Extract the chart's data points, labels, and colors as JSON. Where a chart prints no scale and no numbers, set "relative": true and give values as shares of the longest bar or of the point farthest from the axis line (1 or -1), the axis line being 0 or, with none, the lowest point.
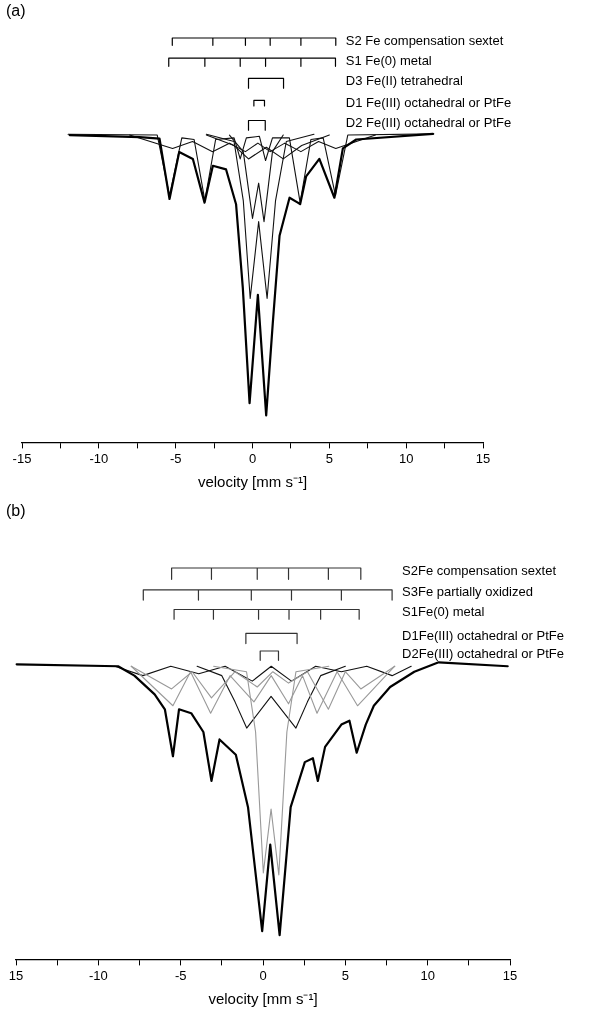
{
  "chart_data": [
    {
      "type": "line",
      "title": "(a)",
      "xlabel": "velocity [mm s⁻¹]",
      "relative": true,
      "marker": "none",
      "xlim": [
        -15,
        15
      ],
      "xticks": [
        -15,
        {
          "value": -12.5,
          "label": null
        },
        -10,
        {
          "value": -7.5,
          "label": null
        },
        -5,
        {
          "value": -2.5,
          "label": null
        },
        0,
        {
          "value": 2.5,
          "label": null
        },
        5,
        {
          "value": 7.5,
          "label": null
        },
        10,
        {
          "value": 12.5,
          "label": null
        },
        15
      ],
      "series": [
        {
          "color": "#000000",
          "x": [
            -11.9,
            -7.35,
            -6.05,
            -5.4,
            -4.77,
            -3.88,
            -3.12,
            -2.58,
            -1.72,
            -1.07,
            -0.63,
            -0.19,
            0.35,
            0.89,
            1.32,
            1.76,
            2.41,
            2.95,
            3.1,
            3.49,
            4.35,
            5.33,
            5.88,
            6.75,
            11.74
          ],
          "values": [
            0.76,
            0.755,
            0.751,
            0.602,
            0.718,
            0.701,
            0.593,
            0.684,
            0.675,
            0.589,
            0.382,
            0.097,
            0.365,
            0.067,
            0.295,
            0.511,
            0.605,
            0.593,
            0.589,
            0.658,
            0.701,
            0.605,
            0.727,
            0.749,
            0.763
          ]
        },
        {
          "color": "#111111",
          "x": [
            -12,
            -6.2,
            -5.4,
            -4.6,
            -3.8,
            -3.1,
            -2.4,
            -1.2,
            -0.8,
            -0.4,
            0.45,
            0.85,
            1.3,
            2.4,
            3.1,
            3.8,
            4.6,
            5.4,
            6.2,
            11.8
          ],
          "values": [
            0.762,
            0.76,
            0.61,
            0.753,
            0.749,
            0.598,
            0.749,
            0.753,
            0.701,
            0.753,
            0.757,
            0.697,
            0.753,
            0.753,
            0.593,
            0.749,
            0.753,
            0.61,
            0.76,
            0.763
          ]
        },
        {
          "color": "#111111",
          "x": [
            -3,
            -1.2,
            -0.6,
            -0.15,
            0.4,
            0.95,
            1.5,
            2.2,
            4
          ],
          "values": [
            0.762,
            0.744,
            0.598,
            0.356,
            0.546,
            0.356,
            0.598,
            0.744,
            0.762
          ]
        },
        {
          "color": "#111111",
          "x": [
            -1.5,
            -0.6,
            0,
            0.4,
            0.75,
            1.3,
            2
          ],
          "values": [
            0.76,
            0.719,
            0.554,
            0.641,
            0.546,
            0.719,
            0.76
          ]
        },
        {
          "color": "#111111",
          "x": [
            -3,
            -1.2,
            -0.26,
            0.9,
            2.0,
            3.2,
            5
          ],
          "values": [
            0.76,
            0.734,
            0.701,
            0.73,
            0.701,
            0.734,
            0.76
          ]
        },
        {
          "color": "#111111",
          "x": [
            -8,
            -5.2,
            -3.9,
            -2.6,
            -1.5,
            -0.46,
            0.35,
            1.15,
            2.1,
            3.15,
            4.3,
            5.42,
            8
          ],
          "values": [
            0.76,
            0.727,
            0.744,
            0.719,
            0.74,
            0.719,
            0.74,
            0.719,
            0.74,
            0.719,
            0.744,
            0.727,
            0.76
          ]
        },
        {
          "name": "S2 Fe compensation sextet",
          "color": "#000000",
          "x": [
            -5.22,
            -5.22,
            -2.58,
            -2.58,
            -2.58,
            -0.46,
            -0.46,
            -0.46,
            1.15,
            1.15,
            1.15,
            3.15,
            3.15,
            3.15,
            5.42,
            5.42
          ],
          "values": [
            0.982,
            1,
            1,
            0.982,
            1,
            1,
            0.982,
            1,
            1,
            0.982,
            1,
            1,
            0.982,
            1,
            1,
            0.982
          ]
        },
        {
          "name": "S1 Fe(0) metal",
          "color": "#000000",
          "x": [
            -5.45,
            -5.45,
            -3.1,
            -3.1,
            -3.1,
            -0.8,
            -0.8,
            -0.8,
            0.85,
            0.85,
            0.85,
            3.15,
            3.15,
            3.15,
            5.4,
            5.4
          ],
          "values": [
            0.93,
            0.95,
            0.95,
            0.93,
            0.95,
            0.95,
            0.93,
            0.95,
            0.95,
            0.93,
            0.95,
            0.95,
            0.93,
            0.95,
            0.95,
            0.93
          ]
        },
        {
          "name": "D3 Fe(II) tetrahedral",
          "color": "#000000",
          "x": [
            -0.26,
            -0.26,
            2.02,
            2.02
          ],
          "values": [
            0.876,
            0.9,
            0.9,
            0.876
          ]
        },
        {
          "name": "D1 Fe(III) octahedral or PtFe",
          "color": "#000000",
          "x": [
            0.09,
            0.09,
            0.78,
            0.78
          ],
          "values": [
            0.832,
            0.846,
            0.846,
            0.832
          ]
        },
        {
          "name": "D2 Fe(III) octahedral or PtFe",
          "color": "#000000",
          "x": [
            -0.26,
            -0.26,
            0.83,
            0.83
          ],
          "values": [
            0.772,
            0.796,
            0.796,
            0.772
          ]
        }
      ]
    },
    {
      "type": "line",
      "title": "(b)",
      "xlabel": "velocity [mm s⁻¹]",
      "relative": true,
      "marker": "none",
      "xlim": [
        -15,
        15
      ],
      "xticks": [
        {
          "value": -15,
          "label": "15"
        },
        {
          "value": -12.5,
          "label": null
        },
        -10,
        {
          "value": -7.5,
          "label": null
        },
        -5,
        {
          "value": -2.5,
          "label": null
        },
        0,
        {
          "value": 2.5,
          "label": null
        },
        5,
        {
          "value": 7.5,
          "label": null
        },
        10,
        {
          "value": 12.5,
          "label": null
        },
        15
      ],
      "series": [
        {
          "color": "#000000",
          "x": [
            -14.96,
            -8.8,
            -7.81,
            -6.58,
            -5.96,
            -5.47,
            -5.1,
            -4.36,
            -3.62,
            -3.13,
            -2.64,
            -1.65,
            -0.91,
            -0.05,
            0.44,
            1.01,
            1.68,
            2.54,
            3.03,
            3.33,
            3.77,
            4.76,
            5.25,
            5.69,
            6.24,
            6.73,
            7.72,
            9.19,
            10.67,
            14.86
          ],
          "values": [
            0.754,
            0.749,
            0.725,
            0.677,
            0.639,
            0.519,
            0.639,
            0.629,
            0.581,
            0.456,
            0.562,
            0.523,
            0.389,
            0.072,
            0.293,
            0.062,
            0.389,
            0.504,
            0.514,
            0.456,
            0.543,
            0.6,
            0.61,
            0.528,
            0.6,
            0.648,
            0.696,
            0.735,
            0.759,
            0.749
          ]
        },
        {
          "color": "#999999",
          "x": [
            -3,
            -1,
            -0.45,
            0.02,
            0.49,
            0.96,
            1.45,
            2,
            4
          ],
          "values": [
            0.749,
            0.735,
            0.581,
            0.221,
            0.384,
            0.216,
            0.581,
            0.735,
            0.749
          ]
        },
        {
          "color": "#999999",
          "x": [
            -8,
            -5.47,
            -4.4,
            -3.18,
            -2,
            -0.55,
            0.5,
            1.55,
            2.4,
            3.28,
            4.5,
            5.74,
            8
          ],
          "values": [
            0.749,
            0.648,
            0.735,
            0.629,
            0.725,
            0.658,
            0.725,
            0.653,
            0.725,
            0.629,
            0.735,
            0.648,
            0.749
          ]
        },
        {
          "color": "#999999",
          "x": [
            -8,
            -5.55,
            -4.3,
            -3.13,
            -1.7,
            -0.35,
            0.6,
            1.55,
            2.7,
            3.97,
            5,
            5.94,
            8
          ],
          "values": [
            0.749,
            0.691,
            0.735,
            0.668,
            0.735,
            0.696,
            0.735,
            0.706,
            0.735,
            0.639,
            0.735,
            0.691,
            0.749
          ]
        },
        {
          "color": "#111111",
          "x": [
            -4,
            -2.5,
            -1.7,
            -0.99,
            0.49,
            2.0,
            2.7,
            3.5,
            5
          ],
          "values": [
            0.749,
            0.725,
            0.658,
            0.591,
            0.672,
            0.591,
            0.658,
            0.725,
            0.749
          ]
        },
        {
          "color": "#111111",
          "x": [
            -9,
            -7.3,
            -5.6,
            -3.9,
            -2.3,
            -0.65,
            0.5,
            1.73,
            3.2,
            4.76,
            6.3,
            7.84,
            9
          ],
          "values": [
            0.749,
            0.725,
            0.749,
            0.73,
            0.749,
            0.711,
            0.749,
            0.711,
            0.749,
            0.735,
            0.749,
            0.725,
            0.749
          ]
        },
        {
          "name": "S2Fe compensation sextet",
          "color": "#333333",
          "x": [
            -5.55,
            -5.55,
            -3.13,
            -3.13,
            -3.13,
            -0.35,
            -0.35,
            -0.35,
            1.55,
            1.55,
            1.55,
            3.97,
            3.97,
            3.97,
            5.94,
            5.94
          ],
          "values": [
            0.971,
            1,
            1,
            0.971,
            1,
            1,
            0.971,
            1,
            1,
            0.971,
            1,
            1,
            0.971,
            1,
            1,
            0.971
          ]
        },
        {
          "name": "S3Fe partially oxidized",
          "color": "#333333",
          "x": [
            -7.27,
            -7.27,
            -3.92,
            -3.92,
            -3.92,
            -0.71,
            -0.71,
            -0.71,
            1.73,
            1.73,
            1.73,
            4.76,
            4.76,
            4.76,
            7.84,
            7.84
          ],
          "values": [
            0.918,
            0.944,
            0.944,
            0.918,
            0.944,
            0.944,
            0.918,
            0.944,
            0.944,
            0.918,
            0.944,
            0.944,
            0.918,
            0.944,
            0.944,
            0.918
          ]
        },
        {
          "name": "S1Fe(0) metal",
          "color": "#333333",
          "x": [
            -5.4,
            -5.4,
            -3.01,
            -3.01,
            -3.01,
            -0.27,
            -0.27,
            -0.27,
            1.58,
            1.58,
            1.58,
            3.5,
            3.5,
            3.5,
            5.84,
            5.84
          ],
          "values": [
            0.869,
            0.894,
            0.894,
            0.869,
            0.894,
            0.894,
            0.869,
            0.894,
            0.894,
            0.869,
            0.894,
            0.894,
            0.869,
            0.894,
            0.894,
            0.869
          ]
        },
        {
          "name": "D1Fe(III) octahedral or PtFe",
          "color": "#333333",
          "x": [
            -1.04,
            -1.04,
            2.07,
            2.07
          ],
          "values": [
            0.807,
            0.833,
            0.833,
            0.807
          ]
        },
        {
          "name": "D2Fe(III) octahedral or PtFe",
          "color": "#333333",
          "x": [
            -0.17,
            -0.17,
            0.94,
            0.94
          ],
          "values": [
            0.764,
            0.788,
            0.788,
            0.764
          ]
        }
      ]
    }
  ]
}
